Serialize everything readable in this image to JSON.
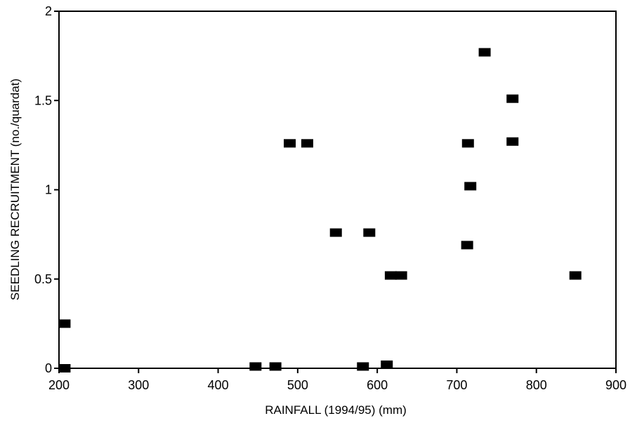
{
  "chart_data": {
    "type": "scatter",
    "title": "",
    "xlabel": "RAINFALL (1994/95) (mm)",
    "ylabel": "SEEDLING RECRUITMENT (no./quardat)",
    "xlim": [
      200,
      900
    ],
    "ylim": [
      0,
      2
    ],
    "xticks": [
      200,
      300,
      400,
      500,
      600,
      700,
      800,
      900
    ],
    "yticks": [
      0,
      0.5,
      1,
      1.5,
      2
    ],
    "ytick_labels": [
      "0",
      "0.5",
      "1",
      "1.5",
      "2"
    ],
    "grid": false,
    "legend": "none",
    "marker": "square",
    "marker_color": "#000000",
    "points": [
      {
        "x": 207,
        "y": 0.25
      },
      {
        "x": 207,
        "y": 0.0
      },
      {
        "x": 447,
        "y": 0.01
      },
      {
        "x": 472,
        "y": 0.01
      },
      {
        "x": 490,
        "y": 1.26
      },
      {
        "x": 512,
        "y": 1.26
      },
      {
        "x": 548,
        "y": 0.76
      },
      {
        "x": 582,
        "y": 0.01
      },
      {
        "x": 590,
        "y": 0.76
      },
      {
        "x": 612,
        "y": 0.02
      },
      {
        "x": 617,
        "y": 0.52
      },
      {
        "x": 630,
        "y": 0.52
      },
      {
        "x": 713,
        "y": 0.69
      },
      {
        "x": 714,
        "y": 1.26
      },
      {
        "x": 717,
        "y": 1.02
      },
      {
        "x": 735,
        "y": 1.77
      },
      {
        "x": 770,
        "y": 1.51
      },
      {
        "x": 770,
        "y": 1.27
      },
      {
        "x": 849,
        "y": 0.52
      }
    ]
  }
}
